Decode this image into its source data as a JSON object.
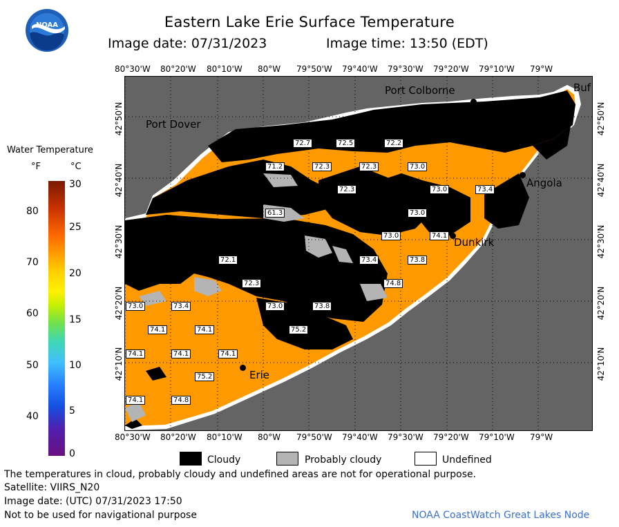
{
  "header": {
    "title": "Eastern Lake Erie Surface Temperature",
    "image_date": "Image date: 07/31/2023",
    "image_time": "Image time: 13:50 (EDT)"
  },
  "logo": {
    "text": "NOAA"
  },
  "axes": {
    "lon_ticks": [
      "80°30'W",
      "80°20'W",
      "80°10'W",
      "80°W",
      "79°50'W",
      "79°40'W",
      "79°30'W",
      "79°20'W",
      "79°10'W",
      "79°W"
    ],
    "lat_ticks": [
      "42°50'N",
      "42°40'N",
      "42°30'N",
      "42°20'N",
      "42°10'N"
    ]
  },
  "colorbar": {
    "title": "Water Temperature",
    "unit_f": "°F",
    "unit_c": "°C",
    "f_ticks": [
      "80",
      "70",
      "60",
      "50",
      "40"
    ],
    "c_ticks": [
      "30",
      "25",
      "20",
      "15",
      "10",
      "5",
      "0"
    ]
  },
  "places": {
    "port_colborne": "Port Colborne",
    "port_dover": "Port Dover",
    "buffalo": "Buf",
    "angola": "Angola",
    "dunkirk": "Dunkirk",
    "erie": "Erie"
  },
  "temperatures": [
    "72.7",
    "72.5",
    "72.2",
    "71.2",
    "72.3",
    "72.3",
    "73.0",
    "72.3",
    "73.0",
    "73.4",
    "61.3",
    "73.0",
    "73.0",
    "74.1",
    "72.1",
    "73.4",
    "73.8",
    "72.3",
    "74.8",
    "73.0",
    "73.4",
    "73.0",
    "73.8",
    "75.2",
    "74.1",
    "74.1",
    "74.1",
    "74.1",
    "74.1",
    "75.2",
    "74.1",
    "74.8"
  ],
  "legend": {
    "cloudy": "Cloudy",
    "probably_cloudy": "Probably cloudy",
    "undefined": "Undefined"
  },
  "footer": {
    "disclaimer": "The temperatures in cloud, probably cloudy and undefined areas are not for operational purpose.",
    "satellite": "Satellite: VIIRS_N20",
    "image_date_utc": "Image date: (UTC) 07/31/2023  17:50",
    "navigation": "Not to be used for navigational purpose",
    "credit": "NOAA CoastWatch Great Lakes Node"
  },
  "colors": {
    "land": "#646464",
    "water_warm": "#ff9900",
    "cloud": "#000000",
    "probably_cloudy": "#b4b4b4",
    "undefined": "#ffffff",
    "credit": "#3a6fd8"
  }
}
